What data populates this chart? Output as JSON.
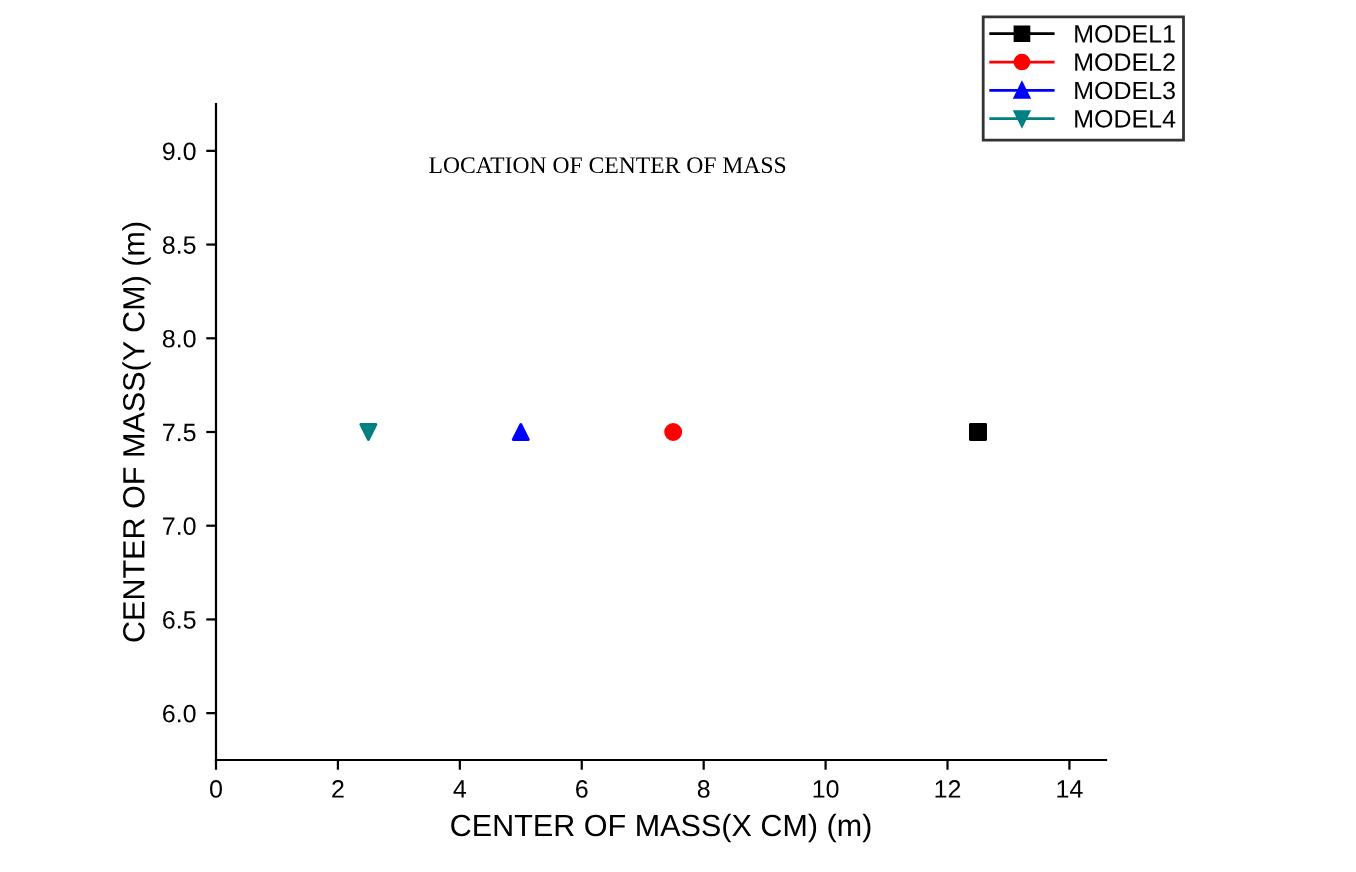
{
  "chart_data": {
    "type": "scatter",
    "title": "LOCATION OF CENTER OF MASS",
    "xlabel": "CENTER OF MASS(X CM) (m)",
    "ylabel": "CENTER OF MASS(Y CM) (m)",
    "xlim": [
      0,
      14.6
    ],
    "xticks": [
      0,
      2,
      4,
      6,
      8,
      10,
      12,
      14
    ],
    "ylim": [
      5.75,
      9.25
    ],
    "yticks": [
      {
        "value": 6,
        "label": "6.0"
      },
      6.5,
      {
        "value": 7,
        "label": "7.0"
      },
      7.5,
      {
        "value": 8,
        "label": "8.0"
      },
      8.5,
      {
        "value": 9,
        "label": "9.0"
      }
    ],
    "legend": "top right",
    "grid": false,
    "series": [
      {
        "name": "MODEL1",
        "color": "#000000",
        "marker": "square",
        "x": [
          12.5
        ],
        "values": [
          7.5
        ]
      },
      {
        "name": "MODEL2",
        "color": "#ff0000",
        "marker": "circle",
        "x": [
          7.5
        ],
        "values": [
          7.5
        ]
      },
      {
        "name": "MODEL3",
        "color": "#0000ff",
        "marker": "triangle",
        "x": [
          5.0
        ],
        "values": [
          7.5
        ]
      },
      {
        "name": "MODEL4",
        "color": "#008080",
        "marker": "triangle_down",
        "x": [
          2.5
        ],
        "values": [
          7.5
        ]
      }
    ]
  }
}
